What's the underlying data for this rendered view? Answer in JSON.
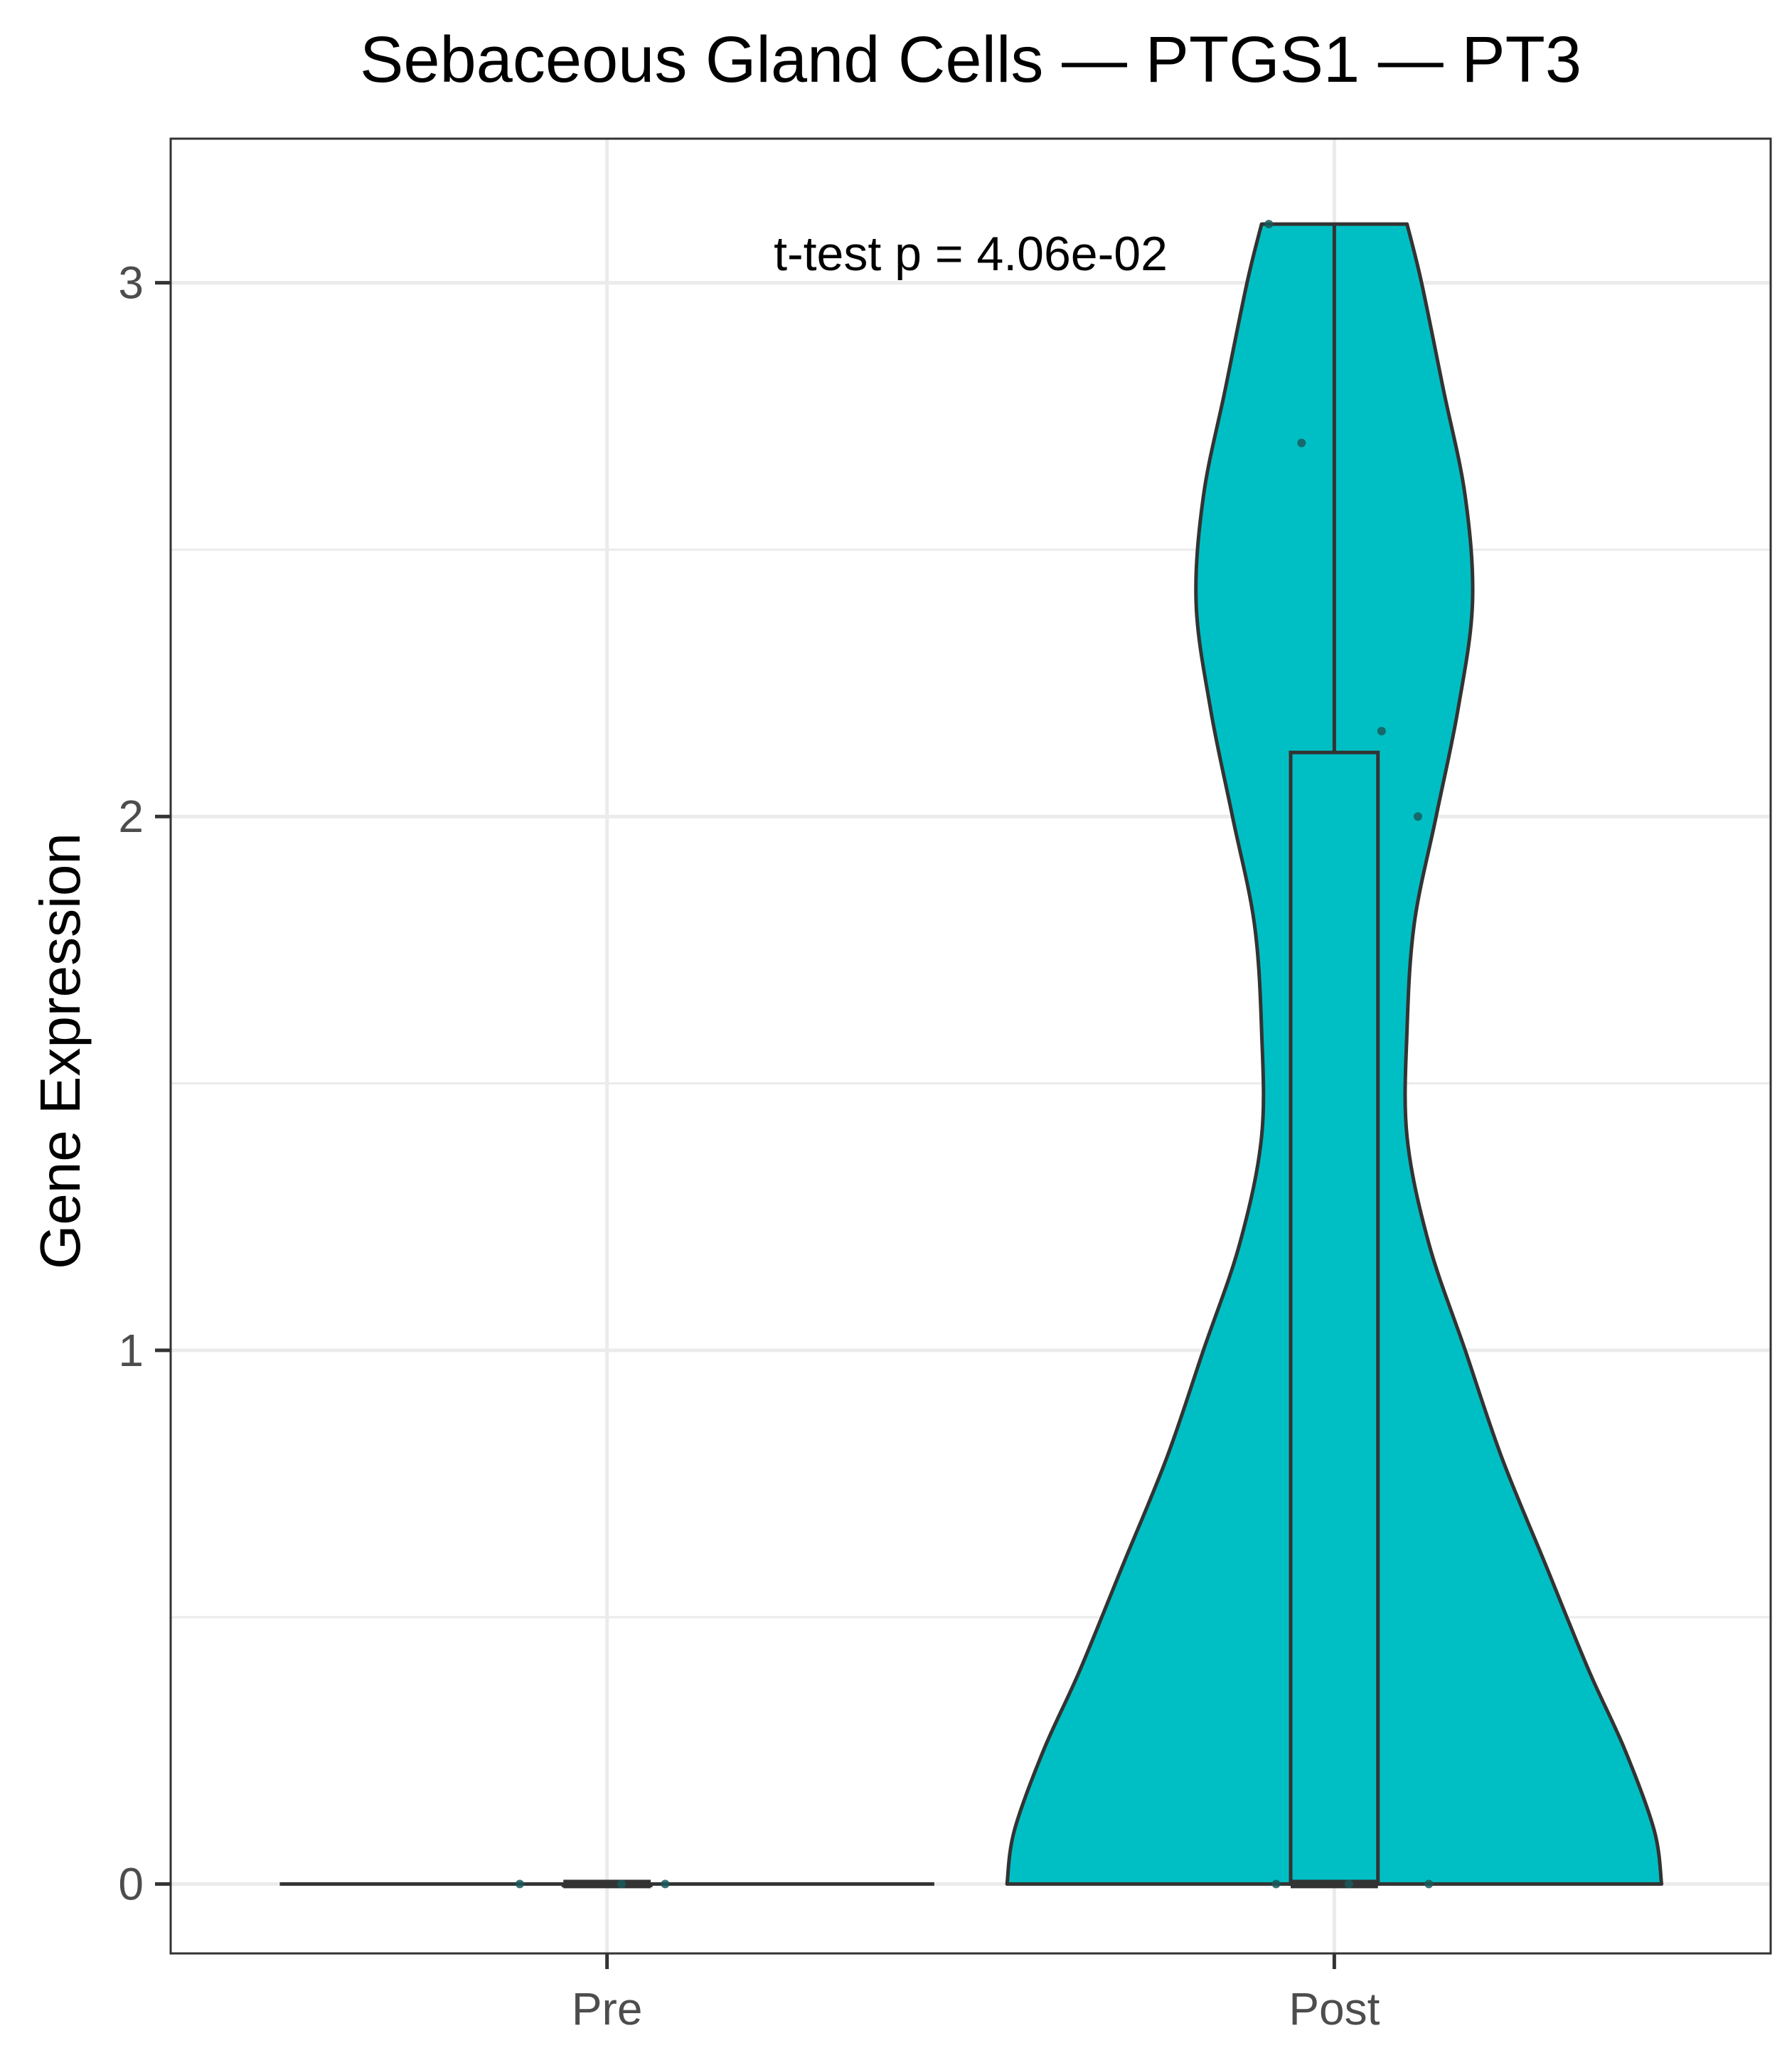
{
  "chart_data": {
    "type": "violin",
    "title": "Sebaceous Gland Cells — PTGS1 — PT3",
    "xlabel": "",
    "ylabel": "Gene Expression",
    "categories": [
      "Pre",
      "Post"
    ],
    "ylim": [
      -0.13,
      3.27
    ],
    "y_ticks": [
      0,
      1,
      2,
      3
    ],
    "grid": true,
    "annotation": "t-test p = 4.06e-02",
    "colors": {
      "Pre": "#F8766D",
      "Post": "#00BFC4",
      "outline": "#333333",
      "grid": "#EBEBEB",
      "points": "#1a5a5c"
    },
    "groups": [
      {
        "name": "Pre",
        "points": [
          0,
          0,
          0
        ],
        "box": {
          "min": 0,
          "q1": 0,
          "median": 0,
          "q3": 0,
          "max": 0
        },
        "violin_half_width_units": [
          [
            0,
            0.45
          ]
        ]
      },
      {
        "name": "Post",
        "points": [
          0,
          0,
          0,
          2.0,
          2.16,
          2.7,
          3.11
        ],
        "box": {
          "min": 0,
          "q1": 0,
          "median": 0,
          "q3": 2.12,
          "max": 3.11
        },
        "violin_half_width_units": [
          [
            0.0,
            0.45
          ],
          [
            0.1,
            0.44
          ],
          [
            0.25,
            0.4
          ],
          [
            0.4,
            0.35
          ],
          [
            0.6,
            0.29
          ],
          [
            0.8,
            0.23
          ],
          [
            1.0,
            0.18
          ],
          [
            1.2,
            0.13
          ],
          [
            1.4,
            0.1
          ],
          [
            1.6,
            0.1
          ],
          [
            1.8,
            0.11
          ],
          [
            2.0,
            0.14
          ],
          [
            2.2,
            0.17
          ],
          [
            2.4,
            0.19
          ],
          [
            2.6,
            0.18
          ],
          [
            2.8,
            0.15
          ],
          [
            3.0,
            0.12
          ],
          [
            3.11,
            0.1
          ]
        ]
      }
    ]
  }
}
